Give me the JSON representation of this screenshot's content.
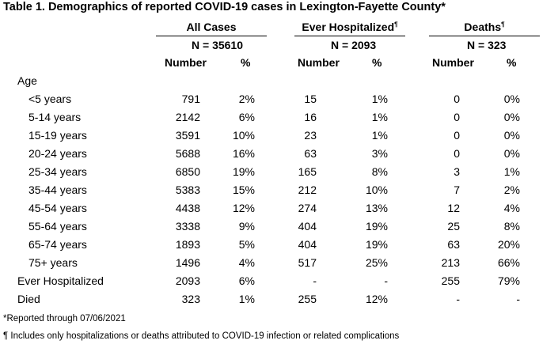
{
  "title": "Table 1. Demographics of reported COVID-19 cases in Lexington-Fayette County*",
  "groups": [
    {
      "name": "All Cases",
      "sup": "",
      "n": "N = 35610"
    },
    {
      "name": "Ever Hospitalized",
      "sup": "¶",
      "n": "N = 2093"
    },
    {
      "name": "Deaths",
      "sup": "¶",
      "n": "N = 323"
    }
  ],
  "col_headers": {
    "number": "Number",
    "pct": "%"
  },
  "section_label": "Age",
  "rows": [
    {
      "label": "<5 years",
      "indent": true,
      "v": [
        "791",
        "2%",
        "15",
        "1%",
        "0",
        "0%"
      ]
    },
    {
      "label": "5-14 years",
      "indent": true,
      "v": [
        "2142",
        "6%",
        "16",
        "1%",
        "0",
        "0%"
      ]
    },
    {
      "label": "15-19 years",
      "indent": true,
      "v": [
        "3591",
        "10%",
        "23",
        "1%",
        "0",
        "0%"
      ]
    },
    {
      "label": "20-24 years",
      "indent": true,
      "v": [
        "5688",
        "16%",
        "63",
        "3%",
        "0",
        "0%"
      ]
    },
    {
      "label": "25-34 years",
      "indent": true,
      "v": [
        "6850",
        "19%",
        "165",
        "8%",
        "3",
        "1%"
      ]
    },
    {
      "label": "35-44 years",
      "indent": true,
      "v": [
        "5383",
        "15%",
        "212",
        "10%",
        "7",
        "2%"
      ]
    },
    {
      "label": "45-54 years",
      "indent": true,
      "v": [
        "4438",
        "12%",
        "274",
        "13%",
        "12",
        "4%"
      ]
    },
    {
      "label": "55-64 years",
      "indent": true,
      "v": [
        "3338",
        "9%",
        "404",
        "19%",
        "25",
        "8%"
      ]
    },
    {
      "label": "65-74 years",
      "indent": true,
      "v": [
        "1893",
        "5%",
        "404",
        "19%",
        "63",
        "20%"
      ]
    },
    {
      "label": "75+ years",
      "indent": true,
      "v": [
        "1496",
        "4%",
        "517",
        "25%",
        "213",
        "66%"
      ]
    },
    {
      "label": "Ever Hospitalized",
      "indent": false,
      "v": [
        "2093",
        "6%",
        "-",
        "-",
        "255",
        "79%"
      ]
    },
    {
      "label": "Died",
      "indent": false,
      "v": [
        "323",
        "1%",
        "255",
        "12%",
        "-",
        "-"
      ]
    }
  ],
  "footnotes": [
    "*Reported through 07/06/2021",
    "¶ Includes only hospitalizations or deaths attributed to COVID-19 infection or related complications"
  ]
}
